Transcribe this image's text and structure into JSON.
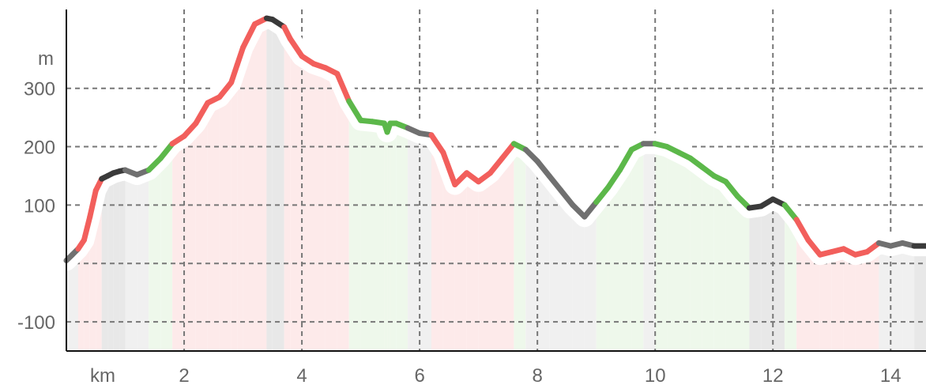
{
  "chart_data": {
    "type": "area",
    "title": "",
    "xlabel": "km",
    "ylabel": "m",
    "x_unit_label": "km",
    "y_unit_label": "m",
    "xlim": [
      0,
      14.6
    ],
    "ylim": [
      -150,
      435
    ],
    "x_ticks": [
      2,
      4,
      6,
      8,
      10,
      12,
      14
    ],
    "y_ticks": [
      -100,
      100,
      200,
      300
    ],
    "x_tick_labels": [
      "2",
      "4",
      "6",
      "8",
      "10",
      "12",
      "14"
    ],
    "y_tick_labels": [
      "-100",
      "100",
      "200",
      "300"
    ],
    "grid": true,
    "x_grid_lines": [
      2,
      4,
      6,
      8,
      10,
      12,
      14
    ],
    "y_grid_lines": [
      -100,
      0,
      100,
      200,
      300
    ],
    "grade_colors": {
      "uphill": "#f25f5c",
      "downhill": "#5cb84a",
      "gentle_up": "#3a3a3a",
      "gentle_down": "#707070"
    },
    "series": [
      {
        "x": [
          0.0,
          0.1,
          0.2,
          0.3,
          0.4,
          0.5,
          0.6,
          0.7,
          0.8,
          0.9,
          1.0,
          1.2,
          1.4,
          1.6,
          1.8,
          2.0,
          2.2,
          2.4,
          2.6,
          2.8,
          2.9,
          3.0,
          3.2,
          3.4,
          3.5,
          3.7,
          3.8,
          4.0,
          4.2,
          4.4,
          4.6,
          4.8,
          5.0,
          5.2,
          5.4,
          5.45,
          5.5,
          5.6,
          5.8,
          6.0,
          6.2,
          6.4,
          6.6,
          6.8,
          7.0,
          7.2,
          7.4,
          7.6,
          7.8,
          8.0,
          8.2,
          8.4,
          8.6,
          8.8,
          9.0,
          9.2,
          9.4,
          9.6,
          9.8,
          10.0,
          10.2,
          10.4,
          10.6,
          10.8,
          11.0,
          11.2,
          11.4,
          11.6,
          11.8,
          12.0,
          12.2,
          12.4,
          12.6,
          12.8,
          13.0,
          13.2,
          13.4,
          13.6,
          13.8,
          14.0,
          14.2,
          14.4,
          14.6
        ],
        "y": [
          5,
          15,
          25,
          40,
          80,
          125,
          145,
          150,
          155,
          158,
          160,
          152,
          160,
          180,
          205,
          218,
          240,
          275,
          285,
          310,
          340,
          370,
          410,
          420,
          418,
          405,
          385,
          355,
          342,
          335,
          325,
          278,
          245,
          243,
          240,
          225,
          240,
          240,
          232,
          223,
          220,
          190,
          135,
          155,
          140,
          155,
          180,
          205,
          195,
          175,
          150,
          125,
          100,
          80,
          105,
          130,
          160,
          195,
          205,
          205,
          200,
          190,
          180,
          165,
          150,
          140,
          115,
          95,
          98,
          110,
          100,
          75,
          40,
          15,
          20,
          25,
          15,
          20,
          35,
          30,
          35,
          30,
          30
        ],
        "grade": [
          "gentle_down",
          "gentle_down",
          "uphill",
          "uphill",
          "uphill",
          "uphill",
          "gentle_up",
          "gentle_up",
          "gentle_up",
          "gentle_up",
          "gentle_down",
          "gentle_down",
          "downhill",
          "downhill",
          "uphill",
          "uphill",
          "uphill",
          "uphill",
          "uphill",
          "uphill",
          "uphill",
          "uphill",
          "uphill",
          "gentle_up",
          "gentle_up",
          "uphill",
          "uphill",
          "uphill",
          "uphill",
          "uphill",
          "uphill",
          "downhill",
          "downhill",
          "downhill",
          "downhill",
          "downhill",
          "downhill",
          "downhill",
          "gentle_down",
          "gentle_down",
          "uphill",
          "uphill",
          "uphill",
          "uphill",
          "uphill",
          "uphill",
          "uphill",
          "downhill",
          "gentle_down",
          "gentle_down",
          "gentle_down",
          "gentle_down",
          "gentle_down",
          "gentle_down",
          "downhill",
          "downhill",
          "downhill",
          "downhill",
          "gentle_down",
          "downhill",
          "downhill",
          "downhill",
          "downhill",
          "downhill",
          "downhill",
          "downhill",
          "downhill",
          "gentle_up",
          "gentle_up",
          "gentle_up",
          "downhill",
          "uphill",
          "uphill",
          "uphill",
          "uphill",
          "uphill",
          "uphill",
          "uphill",
          "gentle_down",
          "gentle_down",
          "gentle_down",
          "gentle_up",
          "gentle_up"
        ]
      }
    ]
  }
}
